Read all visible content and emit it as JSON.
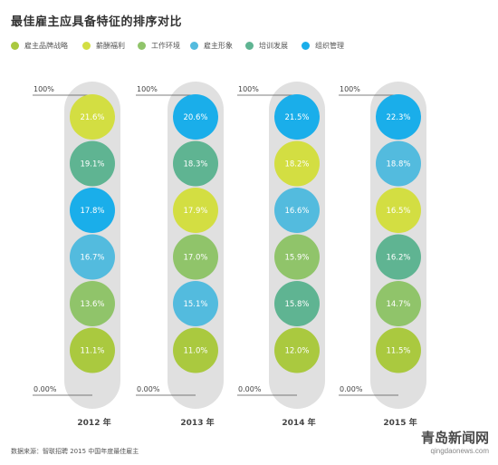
{
  "colors": {
    "employer_strategy": "#aac93f",
    "compensation": "#d3de42",
    "work_environment": "#90c46a",
    "employer_image": "#53bbde",
    "training": "#5fb492",
    "org_management": "#1aaeea",
    "capsule": "#e0e0e0",
    "text": "#444444"
  },
  "chart_data": {
    "type": "bubble-ranking",
    "title": "最佳雇主应具备特征的排序对比",
    "ylim_labels": [
      "100%",
      "0.00%"
    ],
    "legend": [
      {
        "key": "employer_strategy",
        "label": "雇主品牌战略"
      },
      {
        "key": "compensation",
        "label": "薪酬福利"
      },
      {
        "key": "work_environment",
        "label": "工作环境"
      },
      {
        "key": "employer_image",
        "label": "雇主形象"
      },
      {
        "key": "training",
        "label": "培训发展"
      },
      {
        "key": "org_management",
        "label": "组织管理"
      }
    ],
    "columns": [
      {
        "year": "2012 年",
        "items": [
          {
            "key": "compensation",
            "value": "21.6%"
          },
          {
            "key": "training",
            "value": "19.1%"
          },
          {
            "key": "org_management",
            "value": "17.8%"
          },
          {
            "key": "employer_image",
            "value": "16.7%"
          },
          {
            "key": "work_environment",
            "value": "13.6%"
          },
          {
            "key": "employer_strategy",
            "value": "11.1%"
          }
        ]
      },
      {
        "year": "2013 年",
        "items": [
          {
            "key": "org_management",
            "value": "20.6%"
          },
          {
            "key": "training",
            "value": "18.3%"
          },
          {
            "key": "compensation",
            "value": "17.9%"
          },
          {
            "key": "work_environment",
            "value": "17.0%"
          },
          {
            "key": "employer_image",
            "value": "15.1%"
          },
          {
            "key": "employer_strategy",
            "value": "11.0%"
          }
        ]
      },
      {
        "year": "2014 年",
        "items": [
          {
            "key": "org_management",
            "value": "21.5%"
          },
          {
            "key": "compensation",
            "value": "18.2%"
          },
          {
            "key": "employer_image",
            "value": "16.6%"
          },
          {
            "key": "work_environment",
            "value": "15.9%"
          },
          {
            "key": "training",
            "value": "15.8%"
          },
          {
            "key": "employer_strategy",
            "value": "12.0%"
          }
        ]
      },
      {
        "year": "2015 年",
        "items": [
          {
            "key": "org_management",
            "value": "22.3%"
          },
          {
            "key": "employer_image",
            "value": "18.8%"
          },
          {
            "key": "compensation",
            "value": "16.5%"
          },
          {
            "key": "training",
            "value": "16.2%"
          },
          {
            "key": "work_environment",
            "value": "14.7%"
          },
          {
            "key": "employer_strategy",
            "value": "11.5%"
          }
        ]
      }
    ]
  },
  "source": "数据来源：智联招聘 2015 中国年度最佳雇主",
  "watermark": {
    "name": "青岛新闻网",
    "url": "qingdaonews.com"
  }
}
